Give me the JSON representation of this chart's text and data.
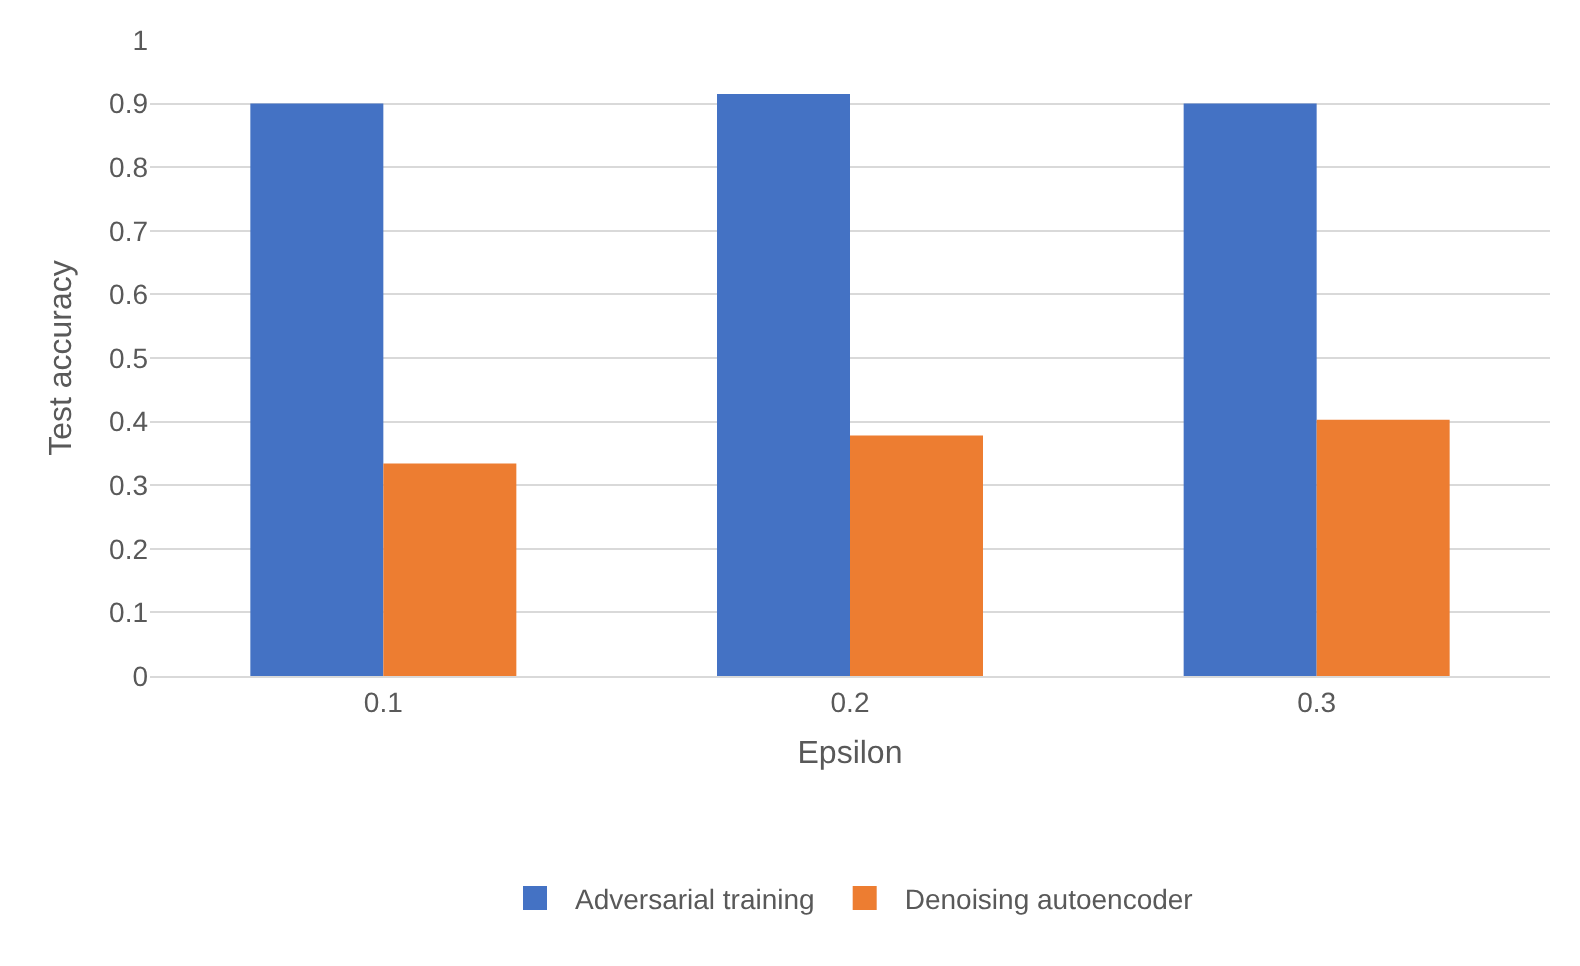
{
  "chart_data": {
    "type": "bar",
    "xlabel": "Epsilon",
    "ylabel": "Test accuracy",
    "categories": [
      "0.1",
      "0.2",
      "0.3"
    ],
    "series": [
      {
        "name": "Adversarial training",
        "color": "#4472c4",
        "values": [
          0.9,
          0.915,
          0.9
        ]
      },
      {
        "name": "Denoising autoencoder",
        "color": "#ed7d31",
        "values": [
          0.334,
          0.378,
          0.403
        ]
      }
    ],
    "ylim": [
      0,
      1
    ],
    "yticks": [
      0,
      0.1,
      0.2,
      0.3,
      0.4,
      0.5,
      0.6,
      0.7,
      0.8,
      0.9,
      1
    ],
    "grid": "y",
    "legend": "bottom"
  }
}
